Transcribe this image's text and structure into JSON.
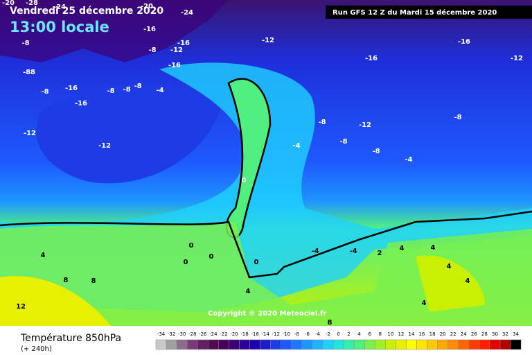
{
  "header": {
    "date": "Vendredi 25 décembre 2020",
    "time": "13:00 locale",
    "run": "Run GFS 12 Z du Mardi 15 décembre 2020"
  },
  "copyright": "Copyright © 2020 Meteociel.fr",
  "footer": {
    "title": "Température 850hPa",
    "subtitle": "(+ 240h)"
  },
  "scale": {
    "values": [
      -34,
      -32,
      -30,
      -28,
      -26,
      -24,
      -22,
      -20,
      -18,
      -16,
      -14,
      -12,
      -10,
      -8,
      -6,
      -4,
      -2,
      0,
      2,
      4,
      6,
      8,
      10,
      12,
      14,
      16,
      18,
      20,
      22,
      24,
      26,
      28,
      30,
      32,
      34
    ],
    "colors": [
      "#c8c8c8",
      "#a0a0a0",
      "#8c6e8c",
      "#783c78",
      "#641e64",
      "#500a50",
      "#46005a",
      "#3c0078",
      "#2d0096",
      "#1e00b4",
      "#1e1ec8",
      "#1e3ce6",
      "#1e5aff",
      "#1e78ff",
      "#1e96ff",
      "#1eb4ff",
      "#1ed2ff",
      "#1ee6dc",
      "#32f0aa",
      "#50f080",
      "#78f050",
      "#a0f028",
      "#c8f000",
      "#e6f000",
      "#ffff00",
      "#ffe600",
      "#ffc800",
      "#ffaa00",
      "#ff8c00",
      "#ff6400",
      "#ff3c00",
      "#ff1e00",
      "#e60000",
      "#b40000",
      "#000000"
    ]
  },
  "contour_labels": [
    "-20",
    "-28",
    "-24",
    "-20",
    "-24",
    "-16",
    "-8",
    "-8",
    "-12",
    "-16",
    "-16",
    "-12",
    "-16",
    "-88",
    "-8",
    "-16",
    "-16",
    "-8",
    "-8",
    "-8",
    "-4",
    "-12",
    "-12",
    "-16",
    "-12",
    "-8",
    "-12",
    "-8",
    "-4",
    "-8",
    "-8",
    "-4",
    "0",
    "0",
    "0",
    "0",
    "0",
    "-4",
    "-4",
    "2",
    "4",
    "4",
    "4",
    "4",
    "8",
    "8",
    "4",
    "12",
    "4",
    "8",
    "4"
  ]
}
